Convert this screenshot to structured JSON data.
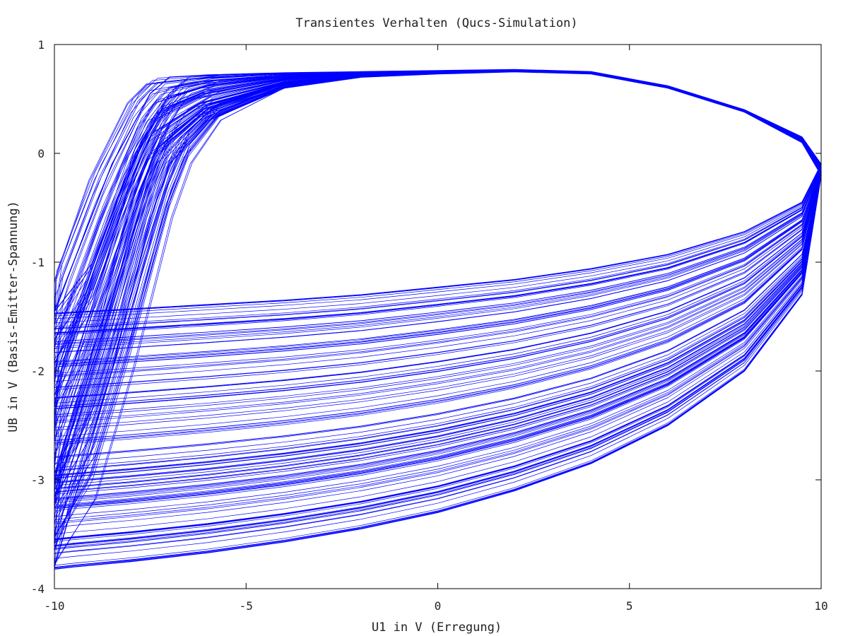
{
  "chart_data": {
    "type": "line",
    "title": "Transientes Verhalten (Qucs-Simulation)",
    "xlabel": "U1 in V (Erregung)",
    "ylabel": "UB in V (Basis-Emitter-Spannung)",
    "xlim": [
      -10,
      10
    ],
    "ylim": [
      -4,
      1
    ],
    "xticks": [
      -10,
      -5,
      0,
      5,
      10
    ],
    "yticks": [
      1,
      0,
      -1,
      -2,
      -3,
      -4
    ],
    "grid": false,
    "legend": "none",
    "line_color": "#0000ff",
    "series": [
      {
        "x": [
          -10,
          -9.5,
          -8.5,
          -7.5,
          -7,
          -6,
          -4,
          -2,
          0,
          2,
          4,
          6,
          8,
          9.5,
          10,
          9.5,
          8,
          6,
          4,
          2,
          0,
          -2,
          -4,
          -6,
          -8,
          -9.5,
          -10
        ],
        "y": [
          -1.45,
          -1.0,
          -0.1,
          0.55,
          0.7,
          0.72,
          0.74,
          0.75,
          0.76,
          0.77,
          0.75,
          0.62,
          0.4,
          0.15,
          -0.1,
          -0.45,
          -0.72,
          -0.93,
          -1.06,
          -1.16,
          -1.23,
          -1.3,
          -1.35,
          -1.39,
          -1.43,
          -1.46,
          -1.47
        ]
      },
      {
        "x": [
          -10,
          -9.5,
          -8.5,
          -7.5,
          -7,
          -6,
          -4,
          -2,
          0,
          2,
          4,
          6,
          8,
          9.5,
          10,
          9.5,
          8,
          6,
          4,
          2,
          0,
          -2,
          -4,
          -6,
          -8,
          -9.5,
          -10
        ],
        "y": [
          -3.8,
          -3.2,
          -2.0,
          -0.6,
          -0.1,
          0.3,
          0.6,
          0.7,
          0.73,
          0.75,
          0.73,
          0.6,
          0.38,
          0.1,
          -0.2,
          -1.3,
          -2.0,
          -2.5,
          -2.85,
          -3.1,
          -3.3,
          -3.45,
          -3.57,
          -3.67,
          -3.75,
          -3.8,
          -3.82
        ]
      }
    ]
  }
}
